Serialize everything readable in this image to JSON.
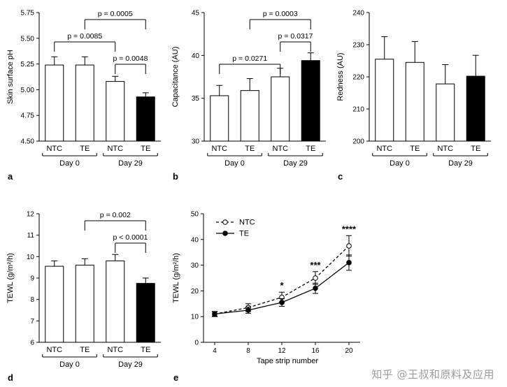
{
  "watermark": {
    "text": "知乎 @王叔和原料及应用"
  },
  "chart_data": [
    {
      "panel": "a",
      "type": "bar",
      "title": "",
      "ylabel": "Skin surface pH",
      "ylim": [
        4.5,
        5.75
      ],
      "yticks": [
        4.5,
        4.75,
        5.0,
        5.25,
        5.5,
        5.75
      ],
      "ytick_labels": [
        "4.50",
        "4.75",
        "5.00",
        "5.25",
        "5.50",
        "5.75"
      ],
      "categories": [
        "NTC",
        "TE",
        "NTC",
        "TE"
      ],
      "groups": [
        {
          "label": "Day 0",
          "from": 0,
          "to": 1
        },
        {
          "label": "Day 29",
          "from": 2,
          "to": 3
        }
      ],
      "values": [
        5.24,
        5.24,
        5.08,
        4.93
      ],
      "errors": [
        0.08,
        0.08,
        0.05,
        0.04
      ],
      "bar_fills": [
        "#ffffff",
        "#ffffff",
        "#ffffff",
        "#000000"
      ],
      "brackets": [
        {
          "from": 1,
          "to": 3,
          "label": "p = 0.0005",
          "level": 2
        },
        {
          "from": 0,
          "to": 2,
          "label": "p = 0.0085",
          "level": 1
        },
        {
          "from": 2,
          "to": 3,
          "label": "p = 0.0048",
          "level": 0
        }
      ]
    },
    {
      "panel": "b",
      "type": "bar",
      "title": "",
      "ylabel": "Capacitance (AU)",
      "ylim": [
        30,
        45
      ],
      "yticks": [
        30,
        35,
        40,
        45
      ],
      "ytick_labels": [
        "30",
        "35",
        "40",
        "45"
      ],
      "categories": [
        "NTC",
        "TE",
        "NTC",
        "TE"
      ],
      "groups": [
        {
          "label": "Day 0",
          "from": 0,
          "to": 1
        },
        {
          "label": "Day 29",
          "from": 2,
          "to": 3
        }
      ],
      "values": [
        35.3,
        35.9,
        37.5,
        39.4
      ],
      "errors": [
        1.2,
        1.4,
        1.0,
        0.9
      ],
      "bar_fills": [
        "#ffffff",
        "#ffffff",
        "#ffffff",
        "#000000"
      ],
      "brackets": [
        {
          "from": 1,
          "to": 3,
          "label": "p = 0.0003",
          "level": 2
        },
        {
          "from": 2,
          "to": 3,
          "label": "p = 0.0317",
          "level": 1
        },
        {
          "from": 0,
          "to": 2,
          "label": "p = 0.0271",
          "level": 0
        }
      ]
    },
    {
      "panel": "c",
      "type": "bar",
      "title": "",
      "ylabel": "Redness (AU)",
      "ylim": [
        200,
        240
      ],
      "yticks": [
        200,
        210,
        220,
        230,
        240
      ],
      "ytick_labels": [
        "200",
        "210",
        "220",
        "230",
        "240"
      ],
      "categories": [
        "NTC",
        "TE",
        "NTC",
        "TE"
      ],
      "groups": [
        {
          "label": "Day 0",
          "from": 0,
          "to": 1
        },
        {
          "label": "Day 29",
          "from": 2,
          "to": 3
        }
      ],
      "values": [
        225.5,
        224.5,
        217.8,
        220.2
      ],
      "errors": [
        7.0,
        6.5,
        6.0,
        6.5
      ],
      "bar_fills": [
        "#ffffff",
        "#ffffff",
        "#ffffff",
        "#000000"
      ],
      "brackets": []
    },
    {
      "panel": "d",
      "type": "bar",
      "title": "",
      "ylabel": "TEWL (g/m²/h)",
      "ylim": [
        6,
        12
      ],
      "yticks": [
        6,
        7,
        8,
        9,
        10,
        11,
        12
      ],
      "ytick_labels": [
        "6",
        "7",
        "8",
        "9",
        "10",
        "11",
        "12"
      ],
      "categories": [
        "NTC",
        "TE",
        "NTC",
        "TE"
      ],
      "groups": [
        {
          "label": "Day 0",
          "from": 0,
          "to": 1
        },
        {
          "label": "Day 29",
          "from": 2,
          "to": 3
        }
      ],
      "values": [
        9.55,
        9.6,
        9.8,
        8.75
      ],
      "errors": [
        0.25,
        0.3,
        0.3,
        0.25
      ],
      "bar_fills": [
        "#ffffff",
        "#ffffff",
        "#ffffff",
        "#000000"
      ],
      "brackets": [
        {
          "from": 1,
          "to": 3,
          "label": "p = 0.002",
          "level": 2
        },
        {
          "from": 2,
          "to": 3,
          "label": "p < 0.0001",
          "level": 1
        }
      ]
    },
    {
      "panel": "e",
      "type": "line",
      "title": "",
      "ylabel": "TEWL (g/m²/h)",
      "xlabel": "Tape strip number",
      "ylim": [
        0,
        50
      ],
      "yticks": [
        0,
        10,
        20,
        30,
        40,
        50
      ],
      "ytick_labels": [
        "0",
        "10",
        "20",
        "30",
        "40",
        "50"
      ],
      "x": [
        4,
        8,
        12,
        16,
        20
      ],
      "xtick_labels": [
        "4",
        "8",
        "12",
        "16",
        "20"
      ],
      "legend_position": "top-left",
      "series": [
        {
          "name": "NTC",
          "line": "dashed",
          "marker": "open",
          "values": [
            11,
            13.5,
            17.5,
            25,
            37.5
          ],
          "errors": [
            1.0,
            1.5,
            2.0,
            2.5,
            4.0
          ]
        },
        {
          "name": "TE",
          "line": "solid",
          "marker": "filled",
          "values": [
            11,
            12.5,
            15.5,
            21,
            31
          ],
          "errors": [
            0.8,
            1.2,
            1.5,
            2.0,
            3.0
          ]
        }
      ],
      "annotations": [
        {
          "x": 12,
          "label": "*"
        },
        {
          "x": 16,
          "label": "***"
        },
        {
          "x": 20,
          "label": "****"
        }
      ]
    }
  ]
}
